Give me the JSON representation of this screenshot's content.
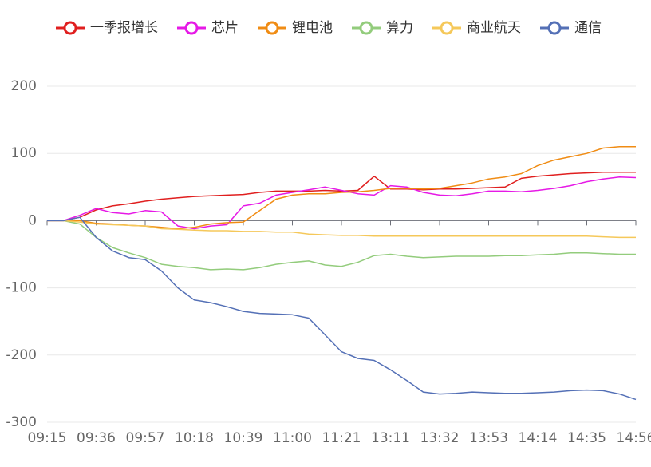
{
  "chart_data": {
    "type": "line",
    "categories": [
      "09:15",
      null,
      null,
      "09:36",
      null,
      null,
      "09:57",
      null,
      null,
      "10:18",
      null,
      null,
      "10:39",
      null,
      null,
      "11:00",
      null,
      null,
      "11:21",
      null,
      null,
      "13:11",
      null,
      null,
      "13:32",
      null,
      null,
      "13:53",
      null,
      null,
      "14:14",
      null,
      null,
      "14:35",
      null,
      null,
      "14:56"
    ],
    "ylim": [
      -300,
      200
    ],
    "yticks": [
      -300,
      -200,
      -100,
      0,
      100,
      200
    ],
    "grid": true,
    "legend": "top",
    "series": [
      {
        "name": "一季报增长",
        "color": "#e01f1f",
        "values": [
          0,
          0,
          5,
          16,
          22,
          25,
          29,
          32,
          34,
          36,
          37,
          38,
          39,
          42,
          44,
          44,
          44,
          45,
          44,
          45,
          66,
          47,
          47,
          46,
          47,
          47,
          48,
          49,
          50,
          63,
          66,
          68,
          70,
          71,
          72,
          72,
          72
        ]
      },
      {
        "name": "芯片",
        "color": "#e619e6",
        "values": [
          0,
          0,
          8,
          18,
          12,
          10,
          15,
          13,
          -8,
          -12,
          -8,
          -6,
          22,
          26,
          38,
          42,
          46,
          50,
          45,
          40,
          38,
          52,
          50,
          42,
          38,
          37,
          40,
          44,
          44,
          43,
          45,
          48,
          52,
          58,
          62,
          65,
          64
        ]
      },
      {
        "name": "锂电池",
        "color": "#f08c14",
        "values": [
          0,
          0,
          0,
          -4,
          -5,
          -7,
          -8,
          -10,
          -12,
          -10,
          -5,
          -3,
          -2,
          15,
          32,
          38,
          40,
          40,
          42,
          43,
          45,
          48,
          48,
          47,
          48,
          52,
          56,
          62,
          65,
          70,
          82,
          90,
          95,
          100,
          108,
          110,
          110
        ]
      },
      {
        "name": "算力",
        "color": "#93cc7c",
        "values": [
          0,
          0,
          -5,
          -25,
          -40,
          -48,
          -55,
          -65,
          -68,
          -70,
          -73,
          -72,
          -73,
          -70,
          -65,
          -62,
          -60,
          -66,
          -68,
          -62,
          -52,
          -50,
          -53,
          -55,
          -54,
          -53,
          -53,
          -53,
          -52,
          -52,
          -51,
          -50,
          -48,
          -48,
          -49,
          -50,
          -50
        ]
      },
      {
        "name": "商业航天",
        "color": "#f5c85a",
        "values": [
          0,
          0,
          -2,
          -5,
          -6,
          -7,
          -8,
          -12,
          -13,
          -14,
          -15,
          -15,
          -16,
          -16,
          -17,
          -17,
          -20,
          -21,
          -22,
          -22,
          -23,
          -23,
          -23,
          -23,
          -23,
          -23,
          -23,
          -23,
          -23,
          -23,
          -23,
          -23,
          -23,
          -23,
          -24,
          -25,
          -25
        ]
      },
      {
        "name": "通信",
        "color": "#5470b6",
        "values": [
          0,
          0,
          5,
          -25,
          -45,
          -55,
          -58,
          -75,
          -100,
          -118,
          -122,
          -128,
          -135,
          -138,
          -139,
          -140,
          -145,
          -170,
          -195,
          -205,
          -208,
          -222,
          -238,
          -255,
          -258,
          -257,
          -255,
          -256,
          -257,
          -257,
          -256,
          -255,
          -253,
          -252,
          -253,
          -258,
          -266
        ]
      }
    ]
  }
}
